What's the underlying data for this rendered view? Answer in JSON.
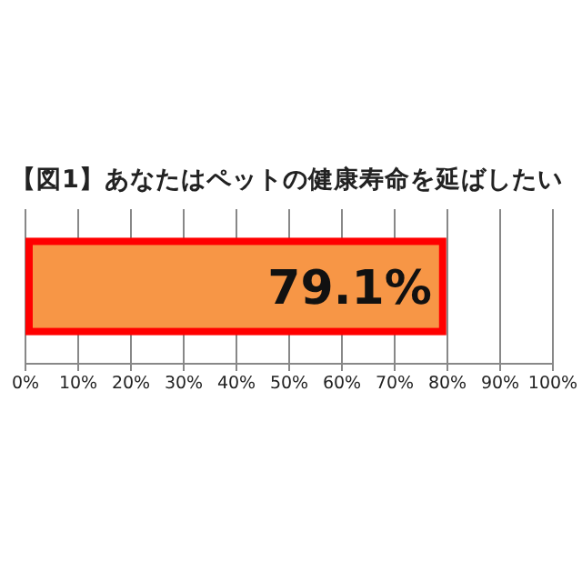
{
  "chart_data": {
    "type": "bar",
    "orientation": "horizontal",
    "title": "【図1】あなたはペットの健康寿命を延ばしたい",
    "categories": [
      null
    ],
    "series": [
      {
        "color": "#f79646",
        "values": [
          79.1
        ]
      }
    ],
    "value_labels": [
      "79.1%"
    ],
    "xlim": [
      0,
      100
    ],
    "xticks": [
      {
        "value": 0,
        "label": "0%"
      },
      {
        "value": 10,
        "label": "10%"
      },
      {
        "value": 20,
        "label": "20%"
      },
      {
        "value": 30,
        "label": "30%"
      },
      {
        "value": 40,
        "label": "40%"
      },
      {
        "value": 50,
        "label": "50%"
      },
      {
        "value": 60,
        "label": "60%"
      },
      {
        "value": 70,
        "label": "70%"
      },
      {
        "value": 80,
        "label": "80%"
      },
      {
        "value": 90,
        "label": "90%"
      },
      {
        "value": 100,
        "label": "100%"
      }
    ],
    "grid": "x"
  }
}
